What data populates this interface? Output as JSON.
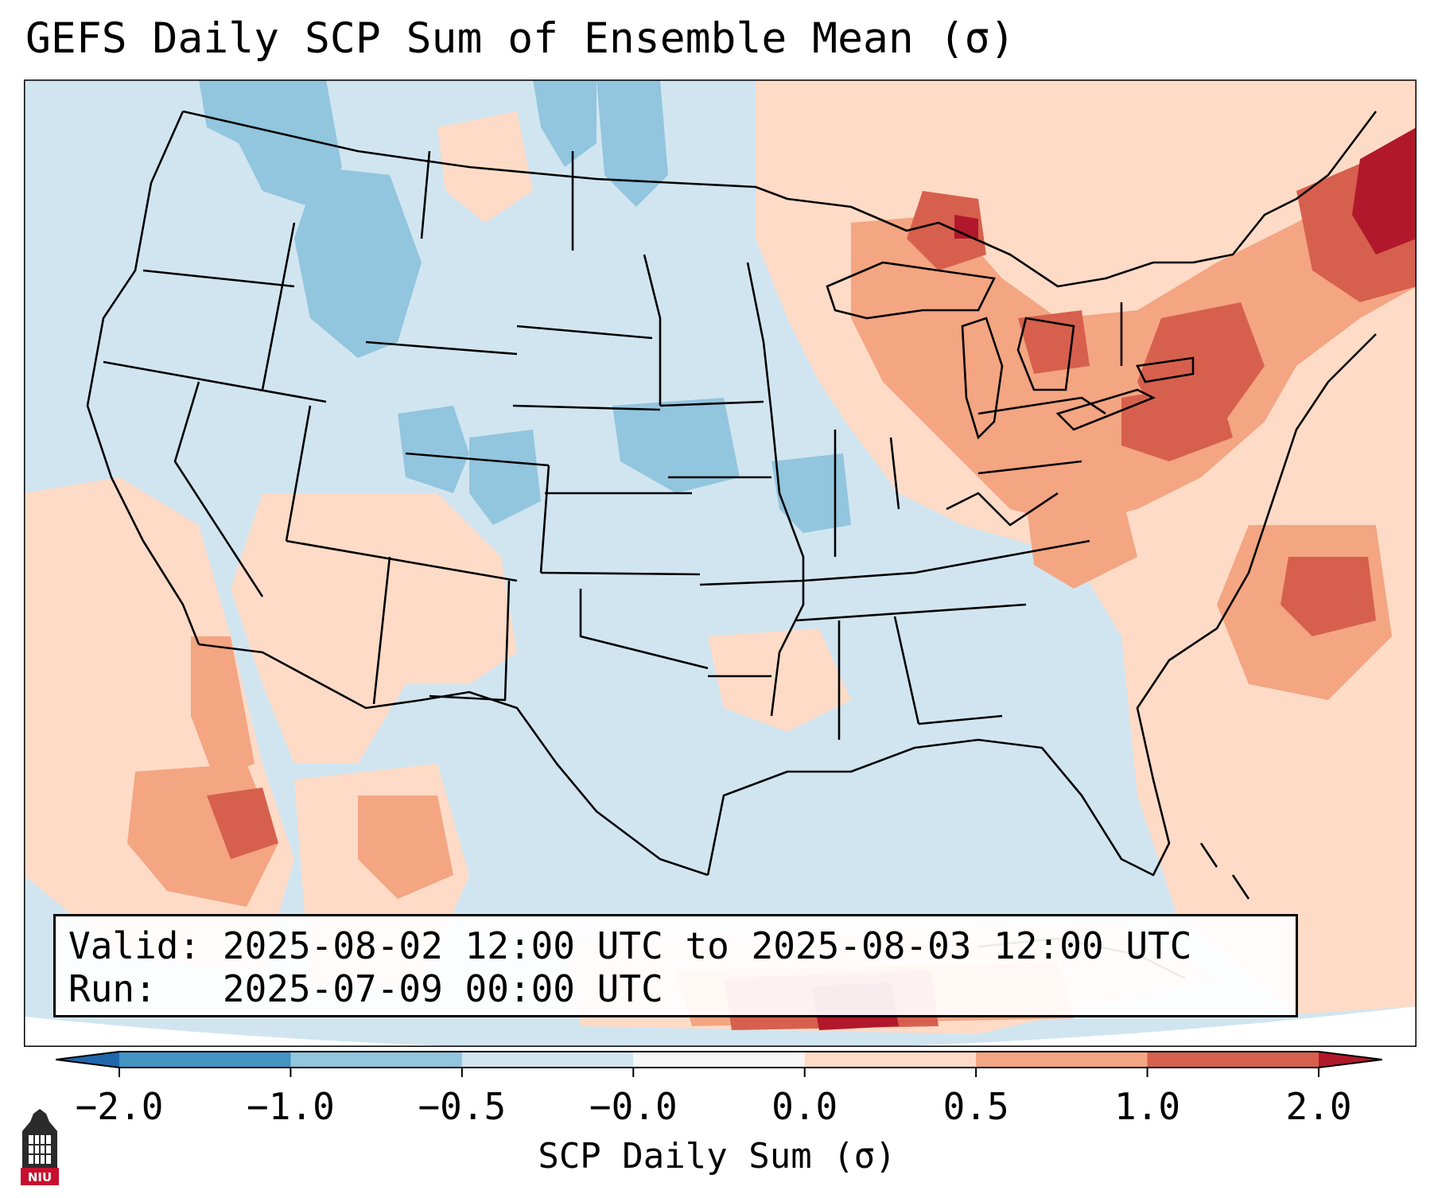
{
  "title": "GEFS Daily SCP Sum of Ensemble Mean (σ)",
  "info": {
    "valid_label": "Valid:",
    "valid_value": "2025-08-02 12:00 UTC to 2025-08-03 12:00 UTC",
    "run_label": "Run:",
    "run_value": "2025-07-09 00:00 UTC"
  },
  "colorbar": {
    "label": "SCP Daily Sum (σ)",
    "ticks": [
      "−2.0",
      "−1.0",
      "−0.5",
      "−0.0",
      "0.0",
      "0.5",
      "1.0",
      "2.0"
    ],
    "bins": [
      {
        "range": "< -2.0",
        "color": "#2166ac"
      },
      {
        "range": "-2.0 to -1.0",
        "color": "#4393c3"
      },
      {
        "range": "-1.0 to -0.5",
        "color": "#92c5de"
      },
      {
        "range": "-0.5 to -0.0",
        "color": "#d1e5f0"
      },
      {
        "range": "-0.0 to 0.0",
        "color": "#f7f7f7"
      },
      {
        "range": "0.0 to 0.5",
        "color": "#fddbc7"
      },
      {
        "range": "0.5 to 1.0",
        "color": "#f4a582"
      },
      {
        "range": "1.0 to 2.0",
        "color": "#d6604d"
      },
      {
        "range": "> 2.0",
        "color": "#b2182b"
      }
    ]
  },
  "map": {
    "background_color": "#d1e5f0",
    "outside_color": "#ffffff",
    "border_color": "#000000",
    "anomaly_regions": [
      {
        "name": "great-lakes-northeast",
        "level": "1.0 to 2.0"
      },
      {
        "name": "new-england-maine",
        "level": "> 2.0"
      },
      {
        "name": "southwest-arizona-new-mexico",
        "level": "0.0 to 0.5"
      },
      {
        "name": "gulf-of-california",
        "level": "0.5 to 1.0"
      },
      {
        "name": "western-atlantic",
        "level": "1.0 to 2.0"
      },
      {
        "name": "caribbean-yucatan",
        "level": "> 2.0"
      },
      {
        "name": "idaho-montana",
        "level": "-1.0 to -0.5"
      },
      {
        "name": "nebraska-kansas",
        "level": "-1.0 to -0.5"
      }
    ]
  },
  "logo": {
    "text": "NIU"
  }
}
